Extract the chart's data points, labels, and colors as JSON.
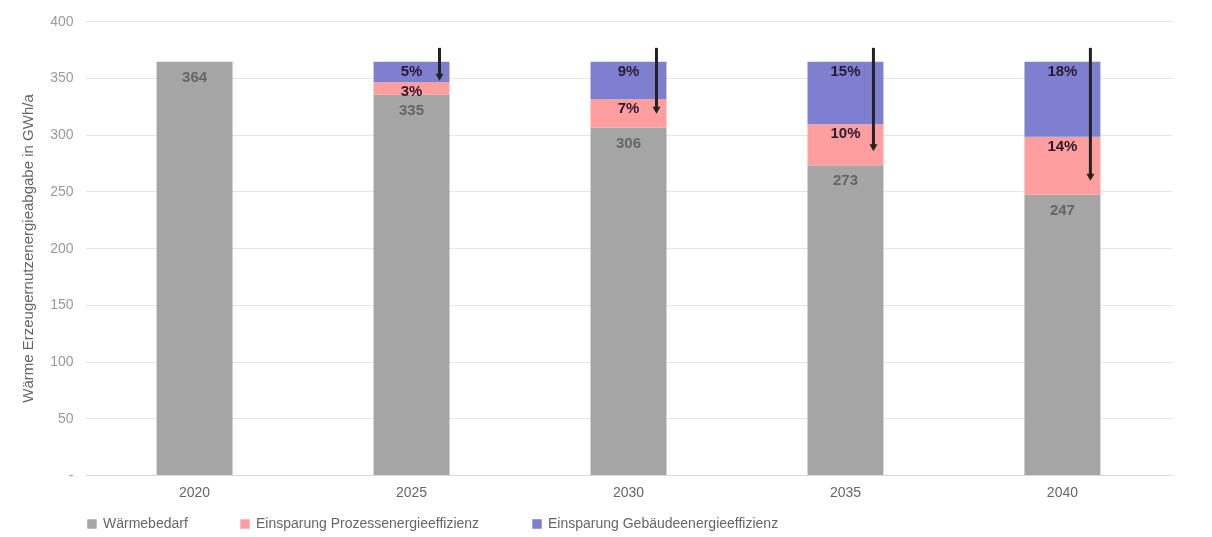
{
  "chart_data": {
    "type": "bar",
    "stacked": true,
    "ylabel": "Wärme Erzeugernutzenergieabgabe in GWh/a",
    "categories": [
      "2020",
      "2025",
      "2030",
      "2035",
      "2040"
    ],
    "series": [
      {
        "name": "Wärmebedarf",
        "color": "#a5a5a5",
        "values": [
          364,
          335,
          306,
          273,
          247
        ],
        "value_labels": [
          "364",
          "335",
          "306",
          "273",
          "247"
        ]
      },
      {
        "name": "Einsparung Prozessenergieeffizienz",
        "color": "#ff9e9e",
        "values": [
          0,
          11,
          25,
          36,
          51
        ]
      },
      {
        "name": "Einsparung Gebäudeenergieeffizienz",
        "color": "#7f7fcf",
        "values": [
          0,
          18,
          33,
          55,
          66
        ]
      }
    ],
    "annotations": [
      {
        "text": "3%",
        "x": "2025",
        "y": 346
      },
      {
        "text": "5%",
        "x": "2025",
        "y": 364
      },
      {
        "text": "7%",
        "x": "2030",
        "y": 331
      },
      {
        "text": "9%",
        "x": "2030",
        "y": 364
      },
      {
        "text": "10%",
        "x": "2035",
        "y": 309
      },
      {
        "text": "15%",
        "x": "2035",
        "y": 364
      },
      {
        "text": "14%",
        "x": "2040",
        "y": 298
      },
      {
        "text": "18%",
        "x": "2040",
        "y": 364
      }
    ],
    "ylim": [
      0,
      400
    ],
    "yticks": [
      {
        "value": 0,
        "label": "-"
      },
      50,
      100,
      150,
      200,
      250,
      300,
      350,
      400
    ],
    "grid": "y",
    "legend": "bottom"
  }
}
